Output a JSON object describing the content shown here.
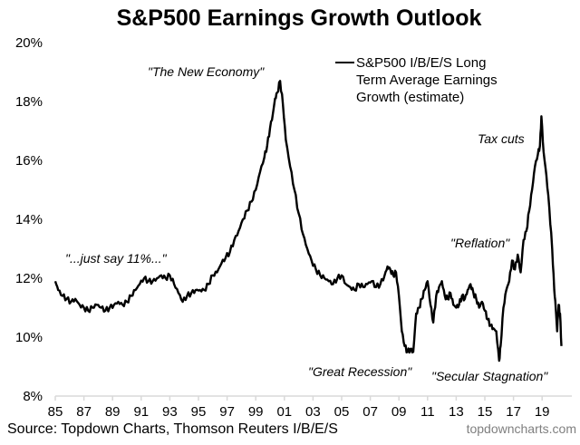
{
  "chart_data": {
    "type": "line",
    "title": "S&P500 Earnings Growth Outlook",
    "xlabel": "",
    "ylabel": "",
    "ylim": [
      8,
      20
    ],
    "xlim": [
      1985,
      2020.4
    ],
    "grid": false,
    "legend_position": "top-right",
    "y_ticks": [
      "8%",
      "10%",
      "12%",
      "14%",
      "16%",
      "18%",
      "20%"
    ],
    "y_tick_values": [
      8,
      10,
      12,
      14,
      16,
      18,
      20
    ],
    "x_ticks": [
      "85",
      "87",
      "89",
      "91",
      "93",
      "95",
      "97",
      "99",
      "01",
      "03",
      "05",
      "07",
      "09",
      "11",
      "13",
      "15",
      "17",
      "19"
    ],
    "x_tick_values": [
      1985,
      1987,
      1989,
      1991,
      1993,
      1995,
      1997,
      1999,
      2001,
      2003,
      2005,
      2007,
      2009,
      2011,
      2013,
      2015,
      2017,
      2019
    ],
    "series": [
      {
        "name": "S&P500 I/B/E/S Long Term Average Earnings Growth (estimate)",
        "legend_lines": [
          "S&P500 I/B/E/S Long",
          "Term Average Earnings",
          "Growth (estimate)"
        ],
        "color": "#000000",
        "x": [
          1985.0,
          1985.2,
          1985.5,
          1985.8,
          1986.1,
          1986.4,
          1986.7,
          1987.0,
          1987.3,
          1987.6,
          1987.9,
          1988.2,
          1988.5,
          1988.8,
          1989.1,
          1989.4,
          1989.7,
          1990.0,
          1990.3,
          1990.6,
          1990.9,
          1991.2,
          1991.5,
          1991.8,
          1992.1,
          1992.4,
          1992.7,
          1993.0,
          1993.3,
          1993.6,
          1993.9,
          1994.2,
          1994.5,
          1994.8,
          1995.1,
          1995.4,
          1995.7,
          1996.0,
          1996.3,
          1996.6,
          1996.9,
          1997.2,
          1997.5,
          1997.8,
          1998.1,
          1998.4,
          1998.7,
          1999.0,
          1999.3,
          1999.6,
          1999.8,
          2000.0,
          2000.2,
          2000.35,
          2000.5,
          2000.7,
          2000.9,
          2001.1,
          2001.4,
          2001.7,
          2002.0,
          2002.3,
          2002.6,
          2002.9,
          2003.2,
          2003.5,
          2003.8,
          2004.1,
          2004.4,
          2004.7,
          2005.0,
          2005.3,
          2005.6,
          2005.9,
          2006.2,
          2006.5,
          2006.8,
          2007.1,
          2007.4,
          2007.7,
          2008.0,
          2008.2,
          2008.4,
          2008.6,
          2008.8,
          2009.0,
          2009.2,
          2009.4,
          2009.6,
          2009.8,
          2010.0,
          2010.2,
          2010.4,
          2010.6,
          2010.8,
          2011.0,
          2011.2,
          2011.4,
          2011.6,
          2011.8,
          2012.0,
          2012.2,
          2012.4,
          2012.6,
          2012.8,
          2013.0,
          2013.2,
          2013.4,
          2013.6,
          2013.8,
          2014.0,
          2014.2,
          2014.4,
          2014.6,
          2014.8,
          2015.0,
          2015.2,
          2015.4,
          2015.6,
          2015.8,
          2016.0,
          2016.1,
          2016.3,
          2016.5,
          2016.7,
          2016.9,
          2017.1,
          2017.3,
          2017.5,
          2017.7,
          2017.9,
          2018.1,
          2018.3,
          2018.5,
          2018.7,
          2018.85,
          2018.95,
          2019.1,
          2019.3,
          2019.5,
          2019.7,
          2019.85,
          2019.95,
          2020.05,
          2020.15,
          2020.25,
          2020.35
        ],
        "values": [
          11.9,
          11.6,
          11.4,
          11.3,
          11.2,
          11.3,
          11.1,
          11.0,
          10.9,
          11.0,
          11.1,
          11.0,
          10.9,
          11.0,
          11.1,
          11.2,
          11.1,
          11.2,
          11.4,
          11.6,
          11.8,
          12.0,
          11.9,
          11.9,
          12.0,
          12.1,
          12.0,
          12.1,
          11.8,
          11.5,
          11.2,
          11.4,
          11.5,
          11.6,
          11.6,
          11.6,
          11.8,
          12.1,
          12.2,
          12.5,
          12.7,
          12.9,
          13.3,
          13.6,
          14.0,
          14.3,
          14.6,
          15.0,
          15.6,
          16.1,
          16.5,
          17.1,
          17.6,
          18.1,
          18.3,
          18.7,
          17.9,
          16.7,
          15.8,
          15.0,
          14.2,
          13.5,
          13.0,
          12.6,
          12.3,
          12.1,
          12.0,
          11.9,
          11.8,
          12.0,
          12.1,
          11.8,
          11.7,
          11.6,
          11.8,
          11.7,
          11.8,
          11.9,
          11.7,
          11.8,
          12.1,
          12.4,
          12.3,
          12.1,
          12.2,
          11.4,
          10.2,
          9.7,
          9.5,
          9.6,
          9.5,
          10.8,
          11.0,
          11.3,
          11.6,
          11.9,
          11.1,
          10.5,
          11.4,
          11.7,
          11.9,
          11.4,
          11.3,
          11.5,
          11.1,
          11.0,
          11.1,
          11.4,
          11.3,
          11.6,
          11.8,
          11.5,
          11.3,
          11.0,
          11.2,
          10.9,
          10.6,
          10.4,
          10.3,
          10.2,
          9.2,
          9.7,
          11.0,
          11.6,
          11.9,
          12.6,
          12.3,
          12.8,
          12.2,
          13.3,
          13.6,
          14.3,
          15.0,
          15.8,
          16.2,
          16.5,
          17.5,
          16.3,
          15.5,
          14.4,
          13.0,
          11.6,
          11.0,
          10.2,
          11.1,
          10.8,
          9.7
        ]
      }
    ],
    "annotations": [
      {
        "text": "\"...just say 11%...\""
      },
      {
        "text": "\"The New Economy\""
      },
      {
        "text": "\"Great Recession\""
      },
      {
        "text": "\"Secular Stagnation\""
      },
      {
        "text": "\"Reflation\""
      },
      {
        "text": "Tax cuts"
      }
    ]
  },
  "footer": {
    "source": "Source: Topdown Charts, Thomson Reuters I/B/E/S",
    "brand": "topdowncharts.com"
  }
}
